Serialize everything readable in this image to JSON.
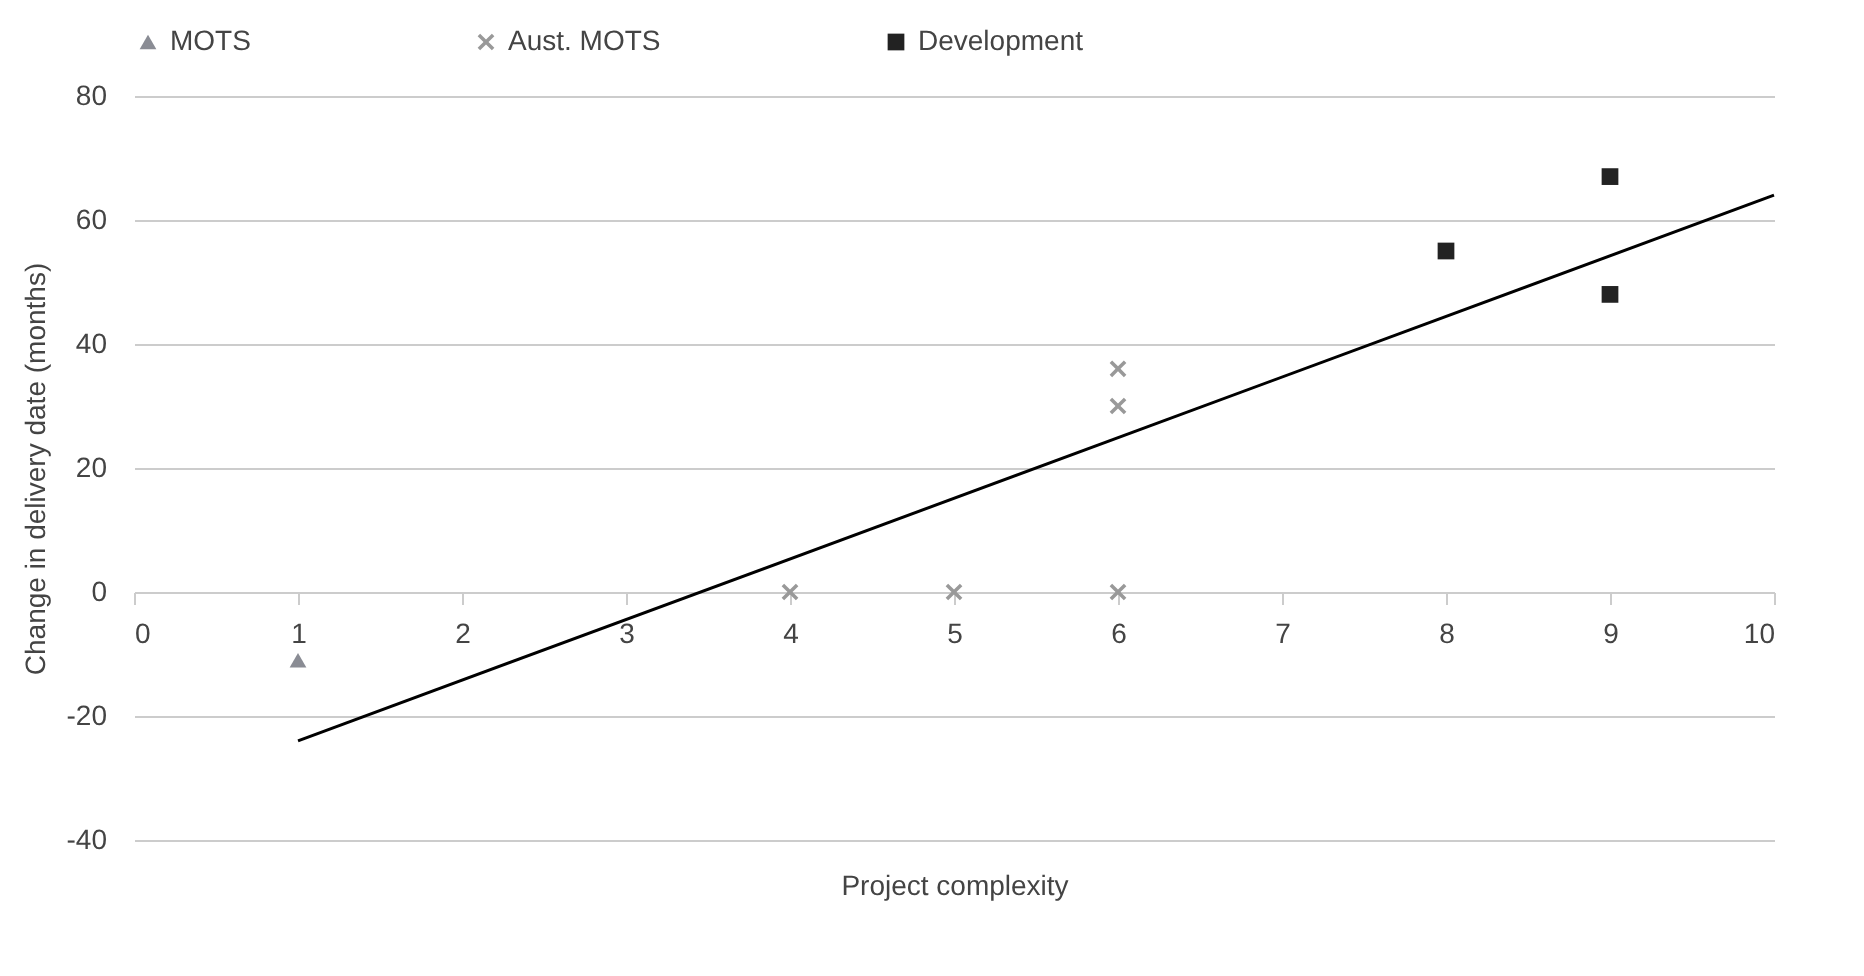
{
  "chart_data": {
    "type": "scatter",
    "xlabel": "Project complexity",
    "ylabel": "Change in delivery date (months)",
    "xlim": [
      0,
      10
    ],
    "xticks": [
      0,
      1,
      2,
      3,
      4,
      5,
      6,
      7,
      8,
      9,
      10
    ],
    "ylim": [
      -40,
      80
    ],
    "yticks": [
      -40,
      -20,
      0,
      20,
      40,
      60,
      80
    ],
    "grid": "y",
    "legend": "top",
    "series": [
      {
        "name": "MOTS",
        "color": "#8a8c94",
        "marker": "triangle",
        "x": [
          1
        ],
        "values": [
          -11
        ]
      },
      {
        "name": "Aust. MOTS",
        "color": "#999999",
        "marker": "cross",
        "x": [
          4,
          5,
          6,
          6,
          6
        ],
        "values": [
          0,
          0,
          0,
          36,
          30
        ]
      },
      {
        "name": "Development",
        "color": "#222222",
        "marker": "square",
        "x": [
          8,
          9,
          9
        ],
        "values": [
          55,
          67,
          48
        ]
      },
      {
        "type": "line",
        "color": "#000000",
        "marker": "none",
        "x": [
          1,
          10
        ],
        "values": [
          -24,
          64
        ]
      }
    ]
  }
}
